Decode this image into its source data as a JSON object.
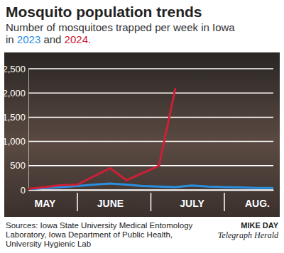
{
  "chart_data": {
    "type": "line",
    "title": "Mosquito population trends",
    "subtitle": "Number of mosquitoes trapped per week in Iowa in 2023 and 2024.",
    "categories": [
      null,
      "MAY",
      null,
      null,
      null,
      "JUNE",
      null,
      null,
      null,
      null,
      "JULY",
      null,
      null,
      null,
      "AUG.",
      null
    ],
    "series": [
      {
        "name": "2023",
        "color": "#2b8fe0",
        "values": [
          10,
          40,
          60,
          80,
          110,
          130,
          110,
          80,
          70,
          60,
          90,
          70,
          60,
          50,
          40,
          40
        ]
      },
      {
        "name": "2024",
        "color": "#cc2036",
        "values": [
          20,
          60,
          100,
          110,
          280,
          450,
          200,
          350,
          500,
          2100,
          null,
          null,
          null,
          null,
          null,
          null
        ]
      }
    ],
    "ylim": [
      0,
      2500
    ],
    "yticks": [
      0,
      500,
      {
        "value": 1000,
        "label": "1,000"
      },
      {
        "value": 1500,
        "label": "1,500"
      },
      {
        "value": 2000,
        "label": "2,000"
      },
      {
        "value": 2500,
        "label": "2,500"
      }
    ],
    "grid": true,
    "source": "Sources: Iowa State University Medical Entomology Laboratory, Iowa Department of Public Health, University Hygienic Lab",
    "credit": "MIKE DAY",
    "publication": "Telegraph Herald"
  }
}
